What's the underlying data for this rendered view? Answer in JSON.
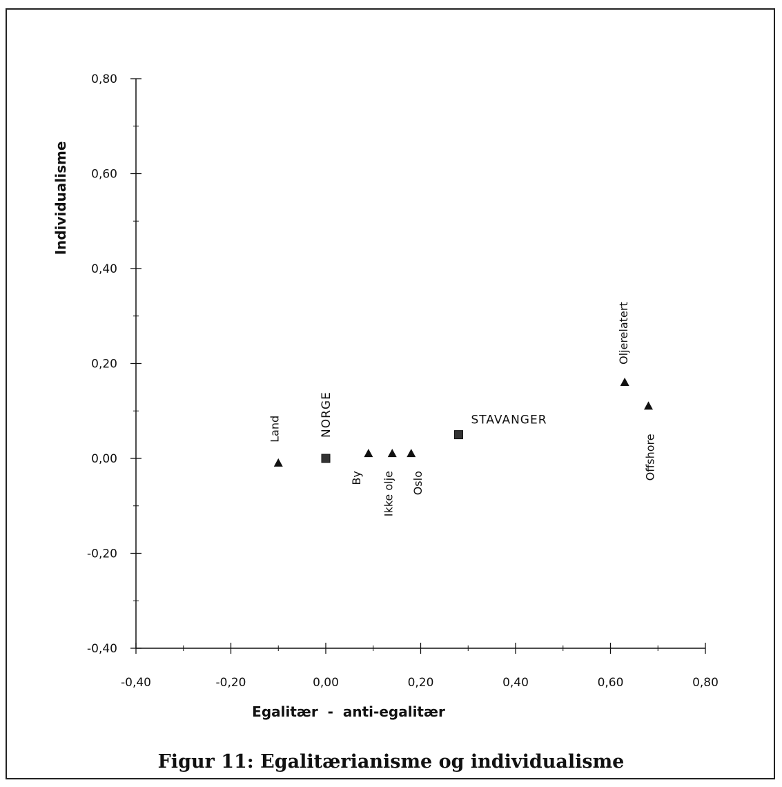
{
  "caption": "Figur 11: Egalitærianisme og individualisme",
  "chart_data": {
    "type": "scatter",
    "xlabel": "Egalitær  -  anti-egalitær",
    "ylabel": "Individualisme",
    "xlim": [
      -0.4,
      0.8
    ],
    "ylim": [
      -0.4,
      0.8
    ],
    "x_ticks": [
      -0.4,
      -0.2,
      0.0,
      0.2,
      0.4,
      0.6,
      0.8
    ],
    "y_ticks": [
      -0.4,
      -0.2,
      0.0,
      0.2,
      0.4,
      0.6,
      0.8
    ],
    "x_tick_labels": [
      "-0,40",
      "-0,20",
      "0,00",
      "0,20",
      "0,40",
      "0,60",
      "0,80"
    ],
    "y_tick_labels": [
      "-0,40",
      "-0,20",
      "0,00",
      "0,20",
      "0,40",
      "0,60",
      "0,80"
    ],
    "grid": false,
    "points": [
      {
        "label": "Land",
        "x": -0.1,
        "y": -0.01,
        "marker": "triangle"
      },
      {
        "label": "NORGE",
        "x": 0.0,
        "y": 0.0,
        "marker": "square"
      },
      {
        "label": "By",
        "x": 0.09,
        "y": 0.01,
        "marker": "triangle"
      },
      {
        "label": "Ikke olje",
        "x": 0.14,
        "y": 0.01,
        "marker": "triangle"
      },
      {
        "label": "Oslo",
        "x": 0.18,
        "y": 0.01,
        "marker": "triangle"
      },
      {
        "label": "STAVANGER",
        "x": 0.28,
        "y": 0.05,
        "marker": "square"
      },
      {
        "label": "Oljerelatert",
        "x": 0.63,
        "y": 0.16,
        "marker": "triangle"
      },
      {
        "label": "Offshore",
        "x": 0.68,
        "y": 0.11,
        "marker": "triangle"
      }
    ]
  }
}
